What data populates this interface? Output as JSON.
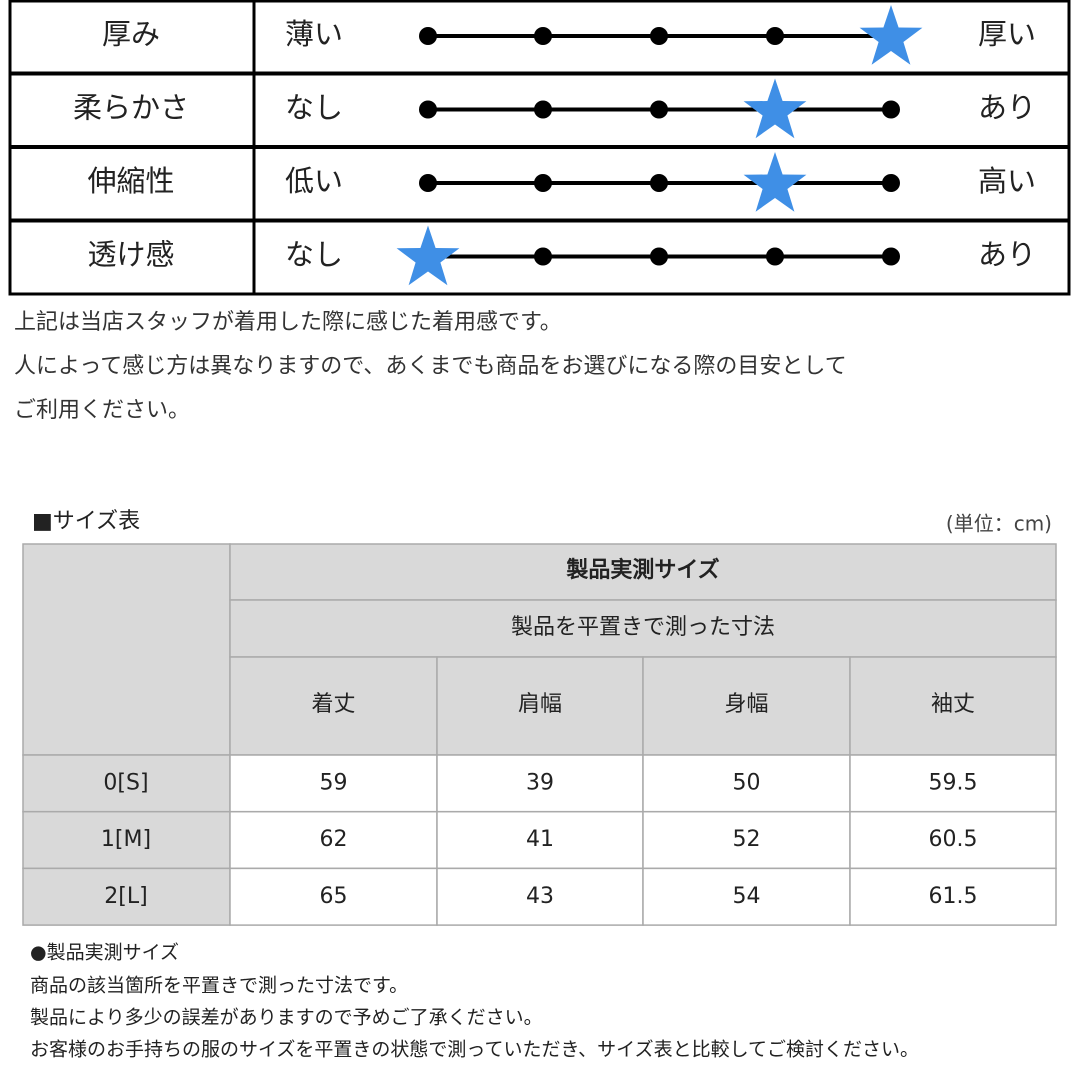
{
  "feel": {
    "rows": [
      {
        "label": "厚み",
        "low": "薄い",
        "high": "厚い",
        "level": 5
      },
      {
        "label": "柔らかさ",
        "low": "なし",
        "high": "あり",
        "level": 4
      },
      {
        "label": "伸縮性",
        "low": "低い",
        "high": "高い",
        "level": 4
      },
      {
        "label": "透け感",
        "low": "なし",
        "high": "あり",
        "level": 1
      }
    ],
    "notes": [
      "上記は当店スタッフが着用した際に感じた着用感です。",
      "人によって感じ方は異なりますので、あくまでも商品をお選びになる際の目安として",
      "ご利用ください。"
    ]
  },
  "size_table": {
    "title": "■サイズ表",
    "unit": "(単位：cm)",
    "header": "製品実測サイズ",
    "subheader": "製品を平置きで測った寸法",
    "columns": [
      "着丈",
      "肩幅",
      "身幅",
      "袖丈"
    ],
    "rows": [
      {
        "size": "0[S]",
        "values": [
          59,
          39,
          50,
          59.5
        ]
      },
      {
        "size": "1[M]",
        "values": [
          62,
          41,
          52,
          60.5
        ]
      },
      {
        "size": "2[L]",
        "values": [
          65,
          43,
          54,
          61.5
        ]
      }
    ]
  },
  "notes": {
    "heading": "●製品実測サイズ",
    "lines": [
      "商品の該当箇所を平置きで測った寸法です。",
      "製品により多少の誤差がありますので予めご了承ください。",
      "お客様のお手持ちの服のサイズを平置きの状態で測っていただき、サイズ表と比較してご検討ください。"
    ]
  }
}
